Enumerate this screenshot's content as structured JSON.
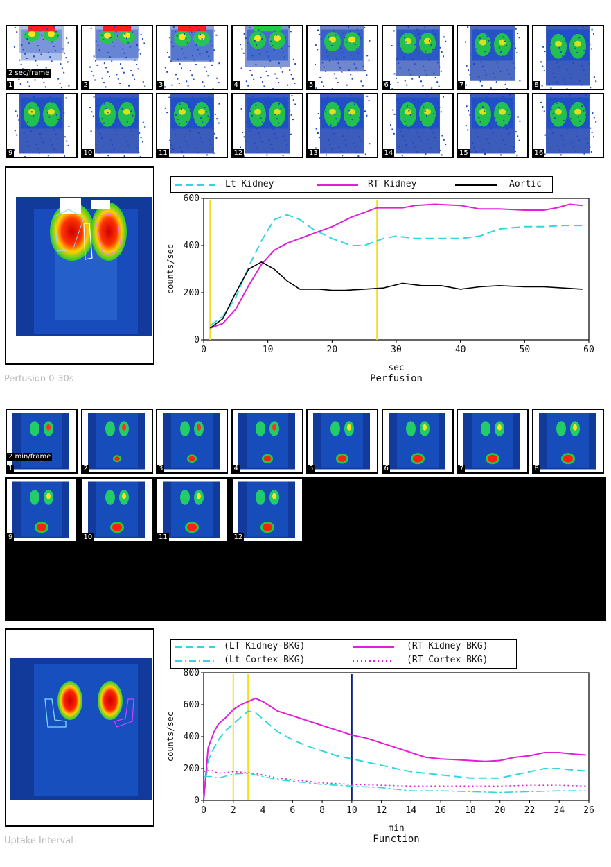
{
  "perfusion": {
    "frame_rate_label": "2 sec/frame",
    "frames": [
      "1",
      "2",
      "3",
      "4",
      "5",
      "6",
      "7",
      "8",
      "9",
      "10",
      "11",
      "12",
      "13",
      "14",
      "15",
      "16"
    ],
    "caption": "Perfusion 0-30s",
    "legend": {
      "lt": "Lt Kidney",
      "rt": "RT Kidney",
      "aortic": "Aortic"
    },
    "colors": {
      "lt": "#33d6e0",
      "rt": "#e020d8",
      "aortic": "#000000",
      "marker": "#f0e020"
    }
  },
  "function_frames": {
    "frame_rate_label": "2 min/frame",
    "frames": [
      "1",
      "2",
      "3",
      "4",
      "5",
      "6",
      "7",
      "8",
      "9",
      "10",
      "11",
      "12"
    ]
  },
  "uptake": {
    "caption": "Uptake Interval",
    "legend": {
      "lt_kidney": "(LT Kidney-BKG)",
      "rt_kidney": "(RT Kidney-BKG)",
      "lt_cortex": "(Lt Cortex-BKG)",
      "rt_cortex": "(RT Cortex-BKG)"
    },
    "colors": {
      "lt": "#33d6e0",
      "rt": "#e020d8",
      "marker_yellow": "#f0e020",
      "marker_blue": "#102080"
    }
  },
  "chart_data": [
    {
      "type": "line",
      "xlabel": "sec",
      "title": "Perfusion",
      "ylabel": "counts/sec",
      "xlim": [
        0,
        60
      ],
      "ylim": [
        0,
        600
      ],
      "x_ticks": [
        "0",
        "10",
        "20",
        "30",
        "40",
        "50",
        "60"
      ],
      "y_ticks": [
        "0",
        "200",
        "400",
        "600"
      ],
      "markers": [
        1,
        27
      ],
      "series": [
        {
          "name": "Lt Kidney",
          "style": "dashed",
          "x": [
            1,
            3,
            5,
            7,
            9,
            11,
            13,
            15,
            17,
            20,
            23,
            25,
            28,
            30,
            33,
            36,
            40,
            43,
            46,
            50,
            53,
            56,
            59
          ],
          "y": [
            60,
            100,
            180,
            310,
            420,
            510,
            530,
            510,
            470,
            430,
            400,
            400,
            430,
            440,
            430,
            430,
            430,
            440,
            470,
            480,
            480,
            485,
            485
          ]
        },
        {
          "name": "RT Kidney",
          "style": "solid",
          "x": [
            1,
            3,
            5,
            7,
            9,
            11,
            13,
            15,
            18,
            20,
            23,
            25,
            27,
            29,
            31,
            33,
            36,
            40,
            43,
            46,
            50,
            53,
            55,
            57,
            59
          ],
          "y": [
            50,
            70,
            130,
            230,
            320,
            380,
            410,
            430,
            460,
            480,
            520,
            540,
            560,
            560,
            560,
            570,
            575,
            570,
            555,
            555,
            550,
            550,
            560,
            575,
            570
          ]
        },
        {
          "name": "Aortic",
          "style": "solid",
          "x": [
            1,
            3,
            5,
            7,
            9,
            11,
            13,
            15,
            18,
            20,
            22,
            25,
            28,
            31,
            34,
            37,
            40,
            43,
            46,
            50,
            53,
            56,
            59
          ],
          "y": [
            50,
            90,
            200,
            300,
            330,
            300,
            250,
            215,
            215,
            210,
            210,
            215,
            220,
            240,
            230,
            230,
            215,
            225,
            230,
            225,
            225,
            220,
            215
          ]
        }
      ]
    },
    {
      "type": "line",
      "xlabel": "min",
      "title": "Function",
      "ylabel": "counts/sec",
      "xlim": [
        0,
        26
      ],
      "ylim": [
        0,
        800
      ],
      "x_ticks": [
        "0",
        "2",
        "4",
        "6",
        "8",
        "10",
        "12",
        "14",
        "16",
        "18",
        "20",
        "22",
        "24",
        "26"
      ],
      "y_ticks": [
        "0",
        "200",
        "400",
        "600",
        "800"
      ],
      "markers_yellow": [
        2,
        3
      ],
      "marker_blue": 10,
      "series": [
        {
          "name": "(LT Kidney-BKG)",
          "style": "dashed",
          "x": [
            0,
            0.3,
            0.7,
            1,
            1.5,
            2,
            2.5,
            3,
            3.5,
            4,
            5,
            6,
            7,
            8,
            9,
            10,
            11,
            12,
            13,
            14,
            15,
            16,
            17,
            18,
            19,
            20,
            21,
            22,
            23,
            24,
            25,
            25.8
          ],
          "y": [
            0,
            250,
            330,
            380,
            440,
            480,
            520,
            560,
            550,
            510,
            430,
            380,
            340,
            310,
            280,
            260,
            240,
            220,
            200,
            180,
            170,
            160,
            150,
            140,
            140,
            140,
            160,
            180,
            200,
            200,
            190,
            185
          ]
        },
        {
          "name": "(RT Kidney-BKG)",
          "style": "solid",
          "x": [
            0,
            0.3,
            0.7,
            1,
            1.5,
            2,
            2.5,
            3,
            3.5,
            4,
            5,
            6,
            7,
            8,
            9,
            10,
            11,
            12,
            13,
            14,
            15,
            16,
            17,
            18,
            19,
            20,
            21,
            22,
            23,
            24,
            25,
            25.8
          ],
          "y": [
            0,
            330,
            430,
            480,
            520,
            570,
            600,
            620,
            640,
            620,
            560,
            530,
            500,
            470,
            440,
            410,
            390,
            360,
            330,
            300,
            270,
            260,
            255,
            250,
            245,
            250,
            270,
            280,
            300,
            300,
            290,
            285
          ]
        },
        {
          "name": "(Lt Cortex-BKG)",
          "style": "dashdot",
          "x": [
            0,
            0.5,
            1,
            2,
            3,
            4,
            5,
            6,
            8,
            10,
            12,
            14,
            16,
            18,
            20,
            22,
            24,
            25.8
          ],
          "y": [
            150,
            150,
            140,
            165,
            170,
            150,
            130,
            120,
            100,
            90,
            80,
            60,
            60,
            55,
            50,
            55,
            60,
            60
          ]
        },
        {
          "name": "(RT Cortex-BKG)",
          "style": "dotted",
          "x": [
            0,
            0.5,
            1,
            2,
            3,
            4,
            5,
            6,
            8,
            10,
            12,
            14,
            16,
            18,
            20,
            22,
            24,
            25.8
          ],
          "y": [
            180,
            190,
            170,
            180,
            175,
            160,
            140,
            130,
            110,
            100,
            95,
            90,
            90,
            90,
            90,
            95,
            95,
            90
          ]
        }
      ]
    }
  ]
}
